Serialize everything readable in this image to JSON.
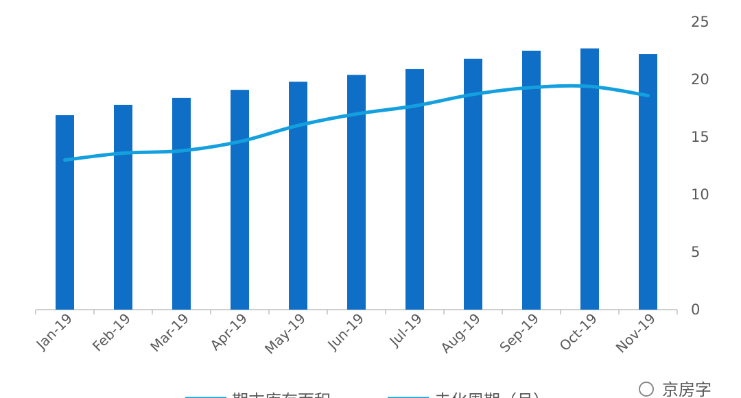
{
  "chart_data": {
    "type": "bar-line",
    "categories": [
      "Jan-19",
      "Feb-19",
      "Mar-19",
      "Apr-19",
      "May-19",
      "Jun-19",
      "Jul-19",
      "Aug-19",
      "Sep-19",
      "Oct-19",
      "Nov-19"
    ],
    "series": [
      {
        "name": "期末库存面积",
        "type": "bar",
        "color": "#0f6fc6",
        "values": [
          16.9,
          17.8,
          18.4,
          19.1,
          19.8,
          20.4,
          20.9,
          21.8,
          22.5,
          22.7,
          22.2
        ]
      },
      {
        "name": "去化周期（月）",
        "type": "line",
        "color": "#14a0de",
        "values": [
          13.0,
          13.6,
          13.8,
          14.6,
          16.0,
          17.0,
          17.7,
          18.7,
          19.3,
          19.4,
          18.6
        ]
      }
    ],
    "ylim": [
      0,
      25
    ],
    "yticks": [
      0,
      5,
      10,
      15,
      20,
      25
    ],
    "y_axis_side": "right",
    "watermark": "京房字"
  }
}
